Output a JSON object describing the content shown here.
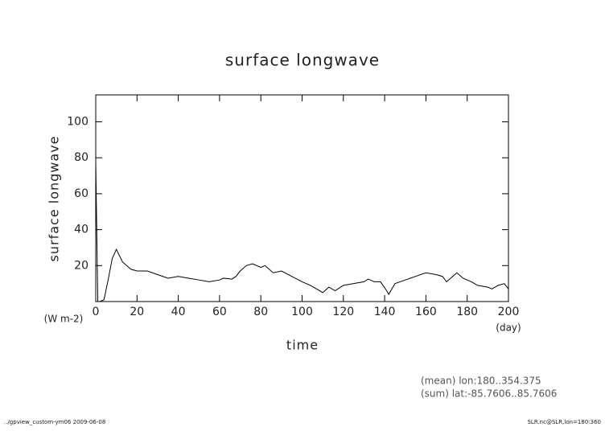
{
  "chart_data": {
    "type": "line",
    "title": "surface longwave",
    "y_label": "surface longwave",
    "y_units": "(W m-2)",
    "x_label": "time",
    "x_units": "(day)",
    "annotations": [
      "(mean) lon:180..354.375",
      "(sum) lat:-85.7606..85.7606"
    ],
    "footer_left": "../gpview_custom-ym06  2009-06-08",
    "footer_right": "SLR.nc@SLR,lon=180:360",
    "x": [
      0,
      1,
      2,
      4,
      6,
      8,
      10,
      13,
      17,
      20,
      25,
      30,
      35,
      40,
      45,
      50,
      55,
      60,
      62,
      66,
      68,
      70,
      73,
      76,
      80,
      82,
      86,
      90,
      95,
      100,
      104,
      107,
      110,
      113,
      116,
      120,
      125,
      130,
      132,
      135,
      138,
      141,
      142,
      145,
      150,
      155,
      160,
      165,
      168,
      170,
      175,
      178,
      182,
      185,
      190,
      192,
      195,
      198,
      200
    ],
    "series": [
      {
        "name": "surface longwave",
        "color": "#000000",
        "values": [
          78,
          0,
          0,
          1,
          12,
          24,
          29,
          22,
          18,
          17,
          17,
          15,
          13,
          14,
          13,
          12,
          11,
          12,
          13,
          12.5,
          14,
          17,
          20,
          21,
          19,
          20,
          16,
          17,
          14,
          11,
          9,
          7,
          5,
          8,
          6,
          9,
          10,
          11,
          12.5,
          11,
          11,
          6,
          4,
          10,
          12,
          14,
          16,
          15,
          14,
          11,
          16,
          13,
          11,
          9,
          8,
          7,
          9,
          10,
          7
        ]
      }
    ],
    "xlim": [
      0,
      200
    ],
    "xticks": [
      0,
      20,
      40,
      60,
      80,
      100,
      120,
      140,
      160,
      180,
      200
    ],
    "ylim": [
      0,
      115
    ],
    "yticks": [
      0,
      20,
      40,
      60,
      80,
      100
    ]
  }
}
